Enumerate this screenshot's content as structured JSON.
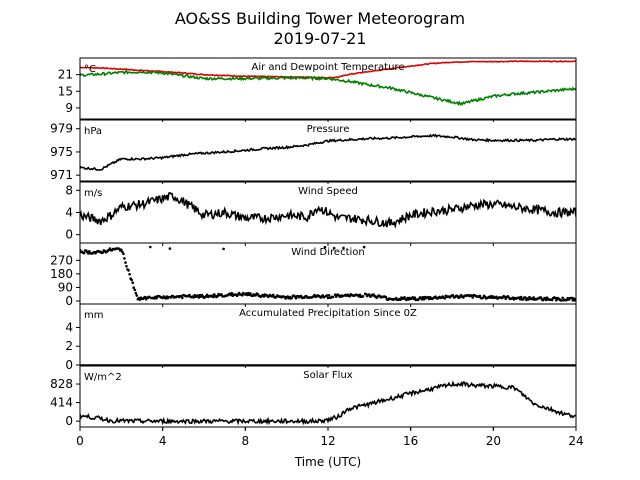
{
  "figure": {
    "title": "AO&SS Building Tower Meteorogram",
    "subtitle": "2019-07-21",
    "xlabel": "Time (UTC)"
  },
  "colors": {
    "temperature": "#dd0000",
    "dewpoint": "#008000",
    "trace": "#000000"
  },
  "chart_data": {
    "type": "line",
    "x_range": [
      0,
      24
    ],
    "x_ticks": [
      "0",
      "4",
      "8",
      "12",
      "16",
      "20",
      "24"
    ],
    "x_tick_values": [
      0,
      4,
      8,
      12,
      16,
      20,
      24
    ],
    "panels": [
      {
        "key": "temp",
        "title": "Air and Dewpoint Temperature",
        "unit": "°C",
        "ylim": [
          5,
          27
        ],
        "y_ticks": [
          9,
          15,
          21
        ],
        "series": [
          {
            "color": "#dd0000",
            "x": [
              0,
              1,
              2,
              3,
              4,
              5,
              6,
              7,
              8,
              9,
              10,
              11,
              12,
              12.5,
              13,
              14,
              15,
              16,
              17,
              18,
              19,
              20,
              21,
              22,
              23,
              24
            ],
            "y": [
              23.6,
              23.4,
              23,
              22.5,
              22.1,
              21.6,
              21,
              20.7,
              20.4,
              20.3,
              20.2,
              20.1,
              19.9,
              20.1,
              21.1,
              22.1,
              23.1,
              24.1,
              25,
              25.5,
              25.7,
              25.7,
              25.8,
              25.8,
              25.8,
              25.8
            ],
            "noise": 0.15
          },
          {
            "color": "#008000",
            "x": [
              0,
              1,
              2,
              3,
              4,
              5,
              6,
              7,
              8,
              9,
              10,
              11,
              12,
              13,
              14,
              15,
              16,
              17,
              18,
              18.5,
              19,
              20,
              21,
              22,
              23,
              24
            ],
            "y": [
              20.8,
              21.2,
              21.8,
              22,
              21.6,
              20.6,
              19.6,
              19.6,
              19.6,
              19.7,
              19.8,
              19.8,
              19.6,
              18.6,
              17.3,
              16.2,
              14.5,
              12.8,
              11.2,
              10.5,
              11.5,
              13.2,
              14.1,
              14.6,
              15.3,
              15.9
            ],
            "noise": 0.45
          }
        ]
      },
      {
        "key": "pressure",
        "title": "Pressure",
        "unit": "hPa",
        "ylim": [
          970,
          980.5
        ],
        "y_ticks": [
          971,
          975,
          979
        ],
        "series": [
          {
            "color": "#000000",
            "x": [
              0,
              1,
              2,
              3,
              4,
              5,
              6,
              7,
              8,
              9,
              10,
              11,
              12,
              13,
              14,
              15,
              16,
              17,
              18,
              19,
              20,
              21,
              22,
              23,
              24
            ],
            "y": [
              972.3,
              972,
              973.8,
              973.8,
              974,
              974.5,
              974.8,
              975,
              975.3,
              975.6,
              975.8,
              976.2,
              976.9,
              977.1,
              977.3,
              977.4,
              977.6,
              977.8,
              977.6,
              977.1,
              977,
              977,
              977,
              977.2,
              977.2
            ],
            "noise": 0.18
          }
        ]
      },
      {
        "key": "wind_speed",
        "title": "Wind Speed",
        "unit": "m/s",
        "ylim": [
          -1.5,
          9.5
        ],
        "y_ticks": [
          0,
          4,
          8
        ],
        "series": [
          {
            "color": "#000000",
            "x": [
              0,
              0.5,
              1,
              1.5,
              2,
              3,
              4,
              4.5,
              5,
              6,
              7,
              8,
              9,
              10,
              11,
              11.5,
              12,
              12.5,
              13,
              14,
              15,
              16,
              17,
              18,
              19,
              20,
              21,
              22,
              23,
              24
            ],
            "y": [
              3.5,
              3,
              2.5,
              3.5,
              5,
              5.5,
              6.5,
              7,
              6,
              3.5,
              4,
              3,
              3,
              3.5,
              3.2,
              5,
              4,
              3,
              3,
              2.6,
              2,
              3.5,
              4.2,
              4.5,
              5.3,
              5.5,
              5,
              4.5,
              4,
              4
            ],
            "noise": 0.8
          }
        ]
      },
      {
        "key": "wind_dir",
        "title": "Wind Direction",
        "unit": "",
        "ylim": [
          -20,
          385
        ],
        "y_ticks": [
          0,
          90,
          180,
          270
        ],
        "scatter": true,
        "series": [
          {
            "color": "#000000",
            "x": [
              0,
              0.8,
              1.5,
              2,
              2.8,
              3,
              4,
              5,
              6,
              7,
              8,
              9,
              10,
              11,
              12,
              13,
              14,
              15,
              16,
              17,
              18,
              19,
              20,
              21,
              22,
              23,
              24
            ],
            "y": [
              330,
              320,
              340,
              345,
              10,
              15,
              25,
              30,
              30,
              40,
              45,
              35,
              25,
              30,
              30,
              35,
              40,
              15,
              15,
              20,
              30,
              30,
              25,
              20,
              15,
              15,
              10
            ],
            "noise": 10
          }
        ]
      },
      {
        "key": "precip",
        "title": "Accumulated Precipitation Since 0Z",
        "unit": "mm",
        "ylim": [
          0,
          6.5
        ],
        "y_ticks": [
          0,
          2,
          4
        ],
        "series": [
          {
            "color": "#000000",
            "x": [
              0,
              24
            ],
            "y": [
              0,
              0
            ],
            "noise": 0
          }
        ]
      },
      {
        "key": "solar",
        "title": "Solar Flux",
        "unit": "W/m^2",
        "ylim": [
          -130,
          1230
        ],
        "y_ticks": [
          0,
          414,
          828
        ],
        "series": [
          {
            "color": "#000000",
            "x": [
              0,
              1,
              1.5,
              3,
              6,
              10,
              11.5,
              12,
              12.5,
              13,
              14,
              15,
              16,
              17,
              18,
              18.5,
              19,
              20,
              21,
              22,
              23,
              23.5,
              24
            ],
            "y": [
              120,
              60,
              10,
              0,
              0,
              0,
              0,
              30,
              100,
              280,
              380,
              500,
              620,
              720,
              820,
              830,
              800,
              780,
              750,
              380,
              230,
              150,
              120
            ],
            "noise": 45
          }
        ]
      }
    ]
  }
}
